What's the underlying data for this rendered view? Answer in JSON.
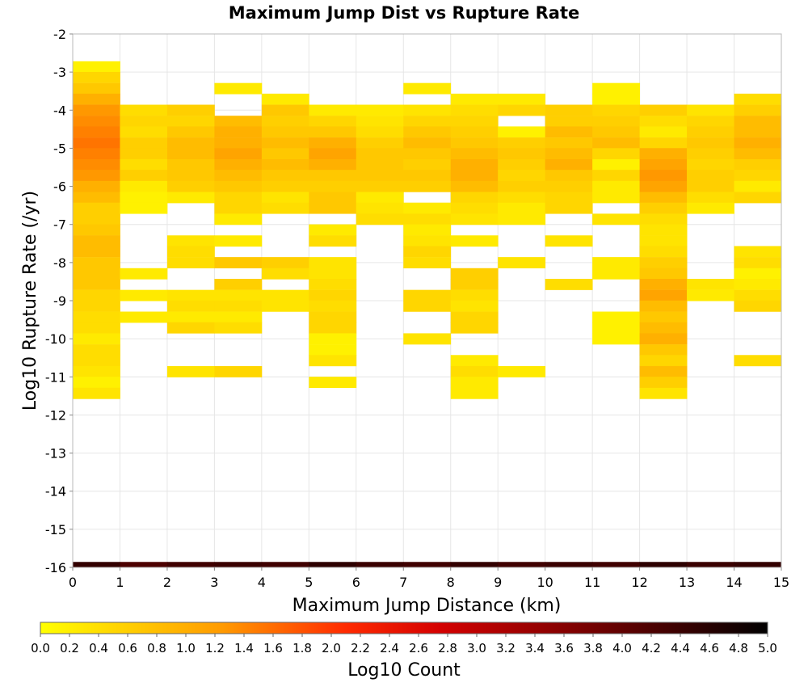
{
  "chart_data": {
    "type": "heatmap",
    "title": "Maximum Jump Dist vs Rupture Rate",
    "xlabel": "Maximum Jump Distance (km)",
    "ylabel": "Log10 Rupture Rate (/yr)",
    "xlim": [
      0,
      15
    ],
    "ylim": [
      -16,
      -2
    ],
    "x_ticks": [
      "0",
      "1",
      "2",
      "3",
      "4",
      "5",
      "6",
      "7",
      "8",
      "9",
      "10",
      "11",
      "12",
      "13",
      "14",
      "15"
    ],
    "y_ticks": [
      "-2",
      "-3",
      "-4",
      "-5",
      "-6",
      "-7",
      "-8",
      "-9",
      "-10",
      "-11",
      "-12",
      "-13",
      "-14",
      "-15",
      "-16"
    ],
    "grid": true,
    "x_bin_width": 1,
    "y_bin_height": 0.286,
    "colorbar": {
      "label": "Log10 Count",
      "min": 0.0,
      "max": 5.0,
      "ticks": [
        "0.0",
        "0.2",
        "0.4",
        "0.6",
        "0.8",
        "1.0",
        "1.2",
        "1.4",
        "1.6",
        "1.8",
        "2.0",
        "2.2",
        "2.4",
        "2.6",
        "2.8",
        "3.0",
        "3.2",
        "3.4",
        "3.6",
        "3.8",
        "4.0",
        "4.2",
        "4.4",
        "4.6",
        "4.8",
        "5.0"
      ],
      "palette": [
        "#ffff00",
        "#ffc800",
        "#ff8c00",
        "#ff5000",
        "#e10000",
        "#960000",
        "#500000",
        "#000000"
      ]
    },
    "columns": [
      {
        "x": 0,
        "cells": [
          [
            -2.86,
            0.2
          ],
          [
            -3.14,
            0.6
          ],
          [
            -3.43,
            0.8
          ],
          [
            -3.71,
            1.0
          ],
          [
            -4.0,
            1.2
          ],
          [
            -4.29,
            1.3
          ],
          [
            -4.57,
            1.4
          ],
          [
            -4.86,
            1.5
          ],
          [
            -5.14,
            1.4
          ],
          [
            -5.43,
            1.3
          ],
          [
            -5.71,
            1.2
          ],
          [
            -6.0,
            1.0
          ],
          [
            -6.29,
            0.9
          ],
          [
            -6.57,
            0.7
          ],
          [
            -6.86,
            0.7
          ],
          [
            -7.14,
            0.8
          ],
          [
            -7.43,
            0.9
          ],
          [
            -7.71,
            0.9
          ],
          [
            -8.0,
            0.8
          ],
          [
            -8.29,
            0.8
          ],
          [
            -8.57,
            0.8
          ],
          [
            -8.86,
            0.6
          ],
          [
            -9.14,
            0.6
          ],
          [
            -9.43,
            0.5
          ],
          [
            -9.71,
            0.5
          ],
          [
            -10.0,
            0.3
          ],
          [
            -10.29,
            0.5
          ],
          [
            -10.57,
            0.5
          ],
          [
            -10.86,
            0.4
          ],
          [
            -11.14,
            0.2
          ],
          [
            -11.43,
            0.4
          ],
          [
            -16.0,
            4.2
          ]
        ]
      },
      {
        "x": 1,
        "cells": [
          [
            -4.0,
            0.5
          ],
          [
            -4.29,
            0.6
          ],
          [
            -4.57,
            0.5
          ],
          [
            -4.86,
            0.7
          ],
          [
            -5.14,
            0.7
          ],
          [
            -5.43,
            0.5
          ],
          [
            -5.71,
            0.7
          ],
          [
            -6.0,
            0.3
          ],
          [
            -6.29,
            0.2
          ],
          [
            -6.57,
            0.2
          ],
          [
            -8.29,
            0.3
          ],
          [
            -8.86,
            0.3
          ],
          [
            -9.43,
            0.3
          ],
          [
            -16.0,
            3.8
          ]
        ]
      },
      {
        "x": 2,
        "cells": [
          [
            -4.0,
            0.7
          ],
          [
            -4.29,
            0.6
          ],
          [
            -4.57,
            0.8
          ],
          [
            -4.86,
            0.9
          ],
          [
            -5.14,
            0.9
          ],
          [
            -5.43,
            0.8
          ],
          [
            -5.71,
            0.8
          ],
          [
            -6.0,
            0.7
          ],
          [
            -6.29,
            0.3
          ],
          [
            -7.43,
            0.4
          ],
          [
            -7.71,
            0.5
          ],
          [
            -8.0,
            0.5
          ],
          [
            -8.86,
            0.4
          ],
          [
            -9.14,
            0.5
          ],
          [
            -9.43,
            0.3
          ],
          [
            -9.71,
            0.6
          ],
          [
            -10.86,
            0.4
          ],
          [
            -16.0,
            4.0
          ]
        ]
      },
      {
        "x": 3,
        "cells": [
          [
            -3.43,
            0.3
          ],
          [
            -4.29,
            0.9
          ],
          [
            -4.57,
            1.0
          ],
          [
            -4.86,
            1.0
          ],
          [
            -5.14,
            1.1
          ],
          [
            -5.43,
            1.0
          ],
          [
            -5.71,
            0.9
          ],
          [
            -6.0,
            0.8
          ],
          [
            -6.29,
            0.6
          ],
          [
            -6.57,
            0.6
          ],
          [
            -6.86,
            0.3
          ],
          [
            -7.43,
            0.3
          ],
          [
            -8.0,
            0.8
          ],
          [
            -8.57,
            0.7
          ],
          [
            -8.86,
            0.4
          ],
          [
            -9.14,
            0.5
          ],
          [
            -9.43,
            0.3
          ],
          [
            -9.71,
            0.5
          ],
          [
            -10.86,
            0.6
          ],
          [
            -16.0,
            4.1
          ]
        ]
      },
      {
        "x": 4,
        "cells": [
          [
            -3.71,
            0.3
          ],
          [
            -4.0,
            0.8
          ],
          [
            -4.29,
            0.7
          ],
          [
            -4.57,
            0.8
          ],
          [
            -4.86,
            0.9
          ],
          [
            -5.14,
            0.8
          ],
          [
            -5.43,
            0.9
          ],
          [
            -5.71,
            0.8
          ],
          [
            -6.0,
            0.7
          ],
          [
            -6.29,
            0.4
          ],
          [
            -6.57,
            0.5
          ],
          [
            -8.0,
            0.7
          ],
          [
            -8.29,
            0.5
          ],
          [
            -8.86,
            0.4
          ],
          [
            -9.14,
            0.4
          ],
          [
            -16.0,
            4.0
          ]
        ]
      },
      {
        "x": 5,
        "cells": [
          [
            -4.0,
            0.3
          ],
          [
            -4.29,
            0.6
          ],
          [
            -4.57,
            0.8
          ],
          [
            -4.86,
            1.0
          ],
          [
            -5.14,
            1.1
          ],
          [
            -5.43,
            1.0
          ],
          [
            -5.71,
            0.8
          ],
          [
            -6.0,
            0.7
          ],
          [
            -6.29,
            0.8
          ],
          [
            -6.57,
            0.8
          ],
          [
            -7.14,
            0.3
          ],
          [
            -7.43,
            0.5
          ],
          [
            -8.0,
            0.4
          ],
          [
            -8.29,
            0.4
          ],
          [
            -8.57,
            0.5
          ],
          [
            -8.86,
            0.6
          ],
          [
            -9.14,
            0.5
          ],
          [
            -9.43,
            0.6
          ],
          [
            -9.71,
            0.6
          ],
          [
            -10.0,
            0.2
          ],
          [
            -10.29,
            0.2
          ],
          [
            -10.57,
            0.4
          ],
          [
            -11.14,
            0.3
          ],
          [
            -16.0,
            4.3
          ]
        ]
      },
      {
        "x": 6,
        "cells": [
          [
            -4.0,
            0.3
          ],
          [
            -4.29,
            0.4
          ],
          [
            -4.57,
            0.5
          ],
          [
            -4.86,
            0.7
          ],
          [
            -5.14,
            0.8
          ],
          [
            -5.43,
            0.8
          ],
          [
            -5.71,
            0.8
          ],
          [
            -6.0,
            0.7
          ],
          [
            -6.29,
            0.3
          ],
          [
            -6.57,
            0.4
          ],
          [
            -6.86,
            0.5
          ],
          [
            -16.0,
            4.1
          ]
        ]
      },
      {
        "x": 7,
        "cells": [
          [
            -3.43,
            0.3
          ],
          [
            -4.0,
            0.4
          ],
          [
            -4.29,
            0.6
          ],
          [
            -4.57,
            0.8
          ],
          [
            -4.86,
            0.9
          ],
          [
            -5.14,
            0.8
          ],
          [
            -5.43,
            0.7
          ],
          [
            -5.71,
            0.8
          ],
          [
            -6.0,
            0.7
          ],
          [
            -6.57,
            0.3
          ],
          [
            -6.86,
            0.5
          ],
          [
            -7.14,
            0.3
          ],
          [
            -7.43,
            0.4
          ],
          [
            -7.71,
            0.6
          ],
          [
            -8.0,
            0.5
          ],
          [
            -8.86,
            0.6
          ],
          [
            -9.14,
            0.6
          ],
          [
            -10.0,
            0.4
          ],
          [
            -16.0,
            4.0
          ]
        ]
      },
      {
        "x": 8,
        "cells": [
          [
            -3.71,
            0.3
          ],
          [
            -4.0,
            0.5
          ],
          [
            -4.29,
            0.6
          ],
          [
            -4.57,
            0.7
          ],
          [
            -4.86,
            0.8
          ],
          [
            -5.14,
            0.9
          ],
          [
            -5.43,
            1.0
          ],
          [
            -5.71,
            1.0
          ],
          [
            -6.0,
            0.9
          ],
          [
            -6.29,
            0.6
          ],
          [
            -6.57,
            0.5
          ],
          [
            -6.86,
            0.4
          ],
          [
            -7.43,
            0.3
          ],
          [
            -8.29,
            0.7
          ],
          [
            -8.57,
            0.7
          ],
          [
            -8.86,
            0.5
          ],
          [
            -9.14,
            0.4
          ],
          [
            -9.43,
            0.6
          ],
          [
            -9.71,
            0.6
          ],
          [
            -10.57,
            0.3
          ],
          [
            -10.86,
            0.5
          ],
          [
            -11.14,
            0.3
          ],
          [
            -11.43,
            0.3
          ],
          [
            -16.0,
            4.2
          ]
        ]
      },
      {
        "x": 9,
        "cells": [
          [
            -3.71,
            0.3
          ],
          [
            -4.0,
            0.6
          ],
          [
            -4.57,
            0.2
          ],
          [
            -4.86,
            0.7
          ],
          [
            -5.14,
            0.8
          ],
          [
            -5.43,
            0.7
          ],
          [
            -5.71,
            0.6
          ],
          [
            -6.0,
            0.7
          ],
          [
            -6.29,
            0.5
          ],
          [
            -6.57,
            0.3
          ],
          [
            -6.86,
            0.3
          ],
          [
            -8.0,
            0.4
          ],
          [
            -10.86,
            0.3
          ],
          [
            -16.0,
            4.0
          ]
        ]
      },
      {
        "x": 10,
        "cells": [
          [
            -4.0,
            0.7
          ],
          [
            -4.29,
            0.7
          ],
          [
            -4.57,
            0.9
          ],
          [
            -4.86,
            0.8
          ],
          [
            -5.14,
            0.9
          ],
          [
            -5.43,
            1.0
          ],
          [
            -5.71,
            0.8
          ],
          [
            -6.0,
            0.7
          ],
          [
            -6.29,
            0.6
          ],
          [
            -6.57,
            0.6
          ],
          [
            -7.43,
            0.4
          ],
          [
            -8.57,
            0.5
          ],
          [
            -16.0,
            4.1
          ]
        ]
      },
      {
        "x": 11,
        "cells": [
          [
            -3.43,
            0.2
          ],
          [
            -3.71,
            0.2
          ],
          [
            -4.0,
            0.6
          ],
          [
            -4.29,
            0.7
          ],
          [
            -4.57,
            0.8
          ],
          [
            -4.86,
            0.9
          ],
          [
            -5.14,
            0.6
          ],
          [
            -5.43,
            0.2
          ],
          [
            -5.71,
            0.6
          ],
          [
            -6.0,
            0.3
          ],
          [
            -6.29,
            0.3
          ],
          [
            -6.86,
            0.4
          ],
          [
            -8.0,
            0.3
          ],
          [
            -8.29,
            0.3
          ],
          [
            -9.43,
            0.2
          ],
          [
            -9.71,
            0.2
          ],
          [
            -10.0,
            0.2
          ],
          [
            -16.0,
            4.0
          ]
        ]
      },
      {
        "x": 12,
        "cells": [
          [
            -4.0,
            0.7
          ],
          [
            -4.29,
            0.5
          ],
          [
            -4.57,
            0.3
          ],
          [
            -4.86,
            0.6
          ],
          [
            -5.14,
            1.0
          ],
          [
            -5.43,
            1.1
          ],
          [
            -5.71,
            1.2
          ],
          [
            -6.0,
            1.1
          ],
          [
            -6.29,
            0.9
          ],
          [
            -6.57,
            0.7
          ],
          [
            -6.86,
            0.5
          ],
          [
            -7.14,
            0.4
          ],
          [
            -7.43,
            0.4
          ],
          [
            -7.71,
            0.5
          ],
          [
            -8.0,
            0.7
          ],
          [
            -8.29,
            0.8
          ],
          [
            -8.57,
            1.0
          ],
          [
            -8.86,
            1.1
          ],
          [
            -9.14,
            0.9
          ],
          [
            -9.43,
            0.8
          ],
          [
            -9.71,
            0.9
          ],
          [
            -10.0,
            1.0
          ],
          [
            -10.29,
            0.8
          ],
          [
            -10.57,
            0.6
          ],
          [
            -10.86,
            0.9
          ],
          [
            -11.14,
            0.7
          ],
          [
            -11.43,
            0.4
          ],
          [
            -16.0,
            4.3
          ]
        ]
      },
      {
        "x": 13,
        "cells": [
          [
            -4.0,
            0.4
          ],
          [
            -4.29,
            0.6
          ],
          [
            -4.57,
            0.7
          ],
          [
            -4.86,
            0.8
          ],
          [
            -5.14,
            0.7
          ],
          [
            -5.43,
            0.6
          ],
          [
            -5.71,
            0.7
          ],
          [
            -6.0,
            0.7
          ],
          [
            -6.29,
            0.5
          ],
          [
            -6.57,
            0.3
          ],
          [
            -8.57,
            0.4
          ],
          [
            -8.86,
            0.3
          ],
          [
            -16.0,
            4.1
          ]
        ]
      },
      {
        "x": 14,
        "cells": [
          [
            -3.71,
            0.5
          ],
          [
            -4.0,
            0.7
          ],
          [
            -4.29,
            0.9
          ],
          [
            -4.57,
            0.9
          ],
          [
            -4.86,
            1.0
          ],
          [
            -5.14,
            0.9
          ],
          [
            -5.43,
            0.7
          ],
          [
            -5.71,
            0.6
          ],
          [
            -6.0,
            0.3
          ],
          [
            -6.29,
            0.6
          ],
          [
            -7.71,
            0.4
          ],
          [
            -8.0,
            0.5
          ],
          [
            -8.29,
            0.2
          ],
          [
            -8.57,
            0.3
          ],
          [
            -8.86,
            0.5
          ],
          [
            -9.14,
            0.6
          ],
          [
            -10.57,
            0.5
          ],
          [
            -16.0,
            4.2
          ]
        ]
      }
    ]
  }
}
